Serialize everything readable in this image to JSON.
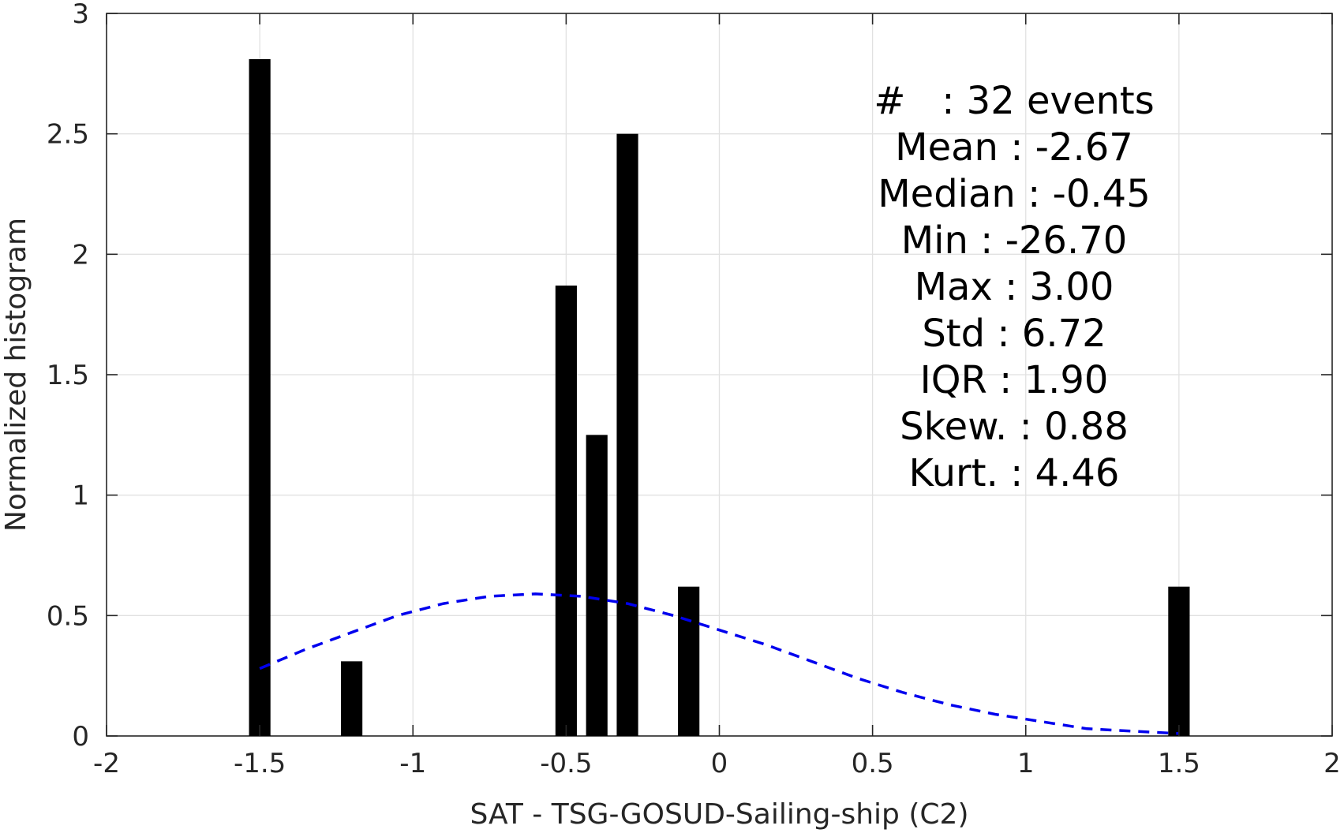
{
  "chart_data": {
    "type": "bar",
    "xlabel": "SAT - TSG-GOSUD-Sailing-ship (C2)",
    "ylabel": "Normalized histogram",
    "xlim": [
      -2,
      2
    ],
    "ylim": [
      0,
      3
    ],
    "xticks": [
      -2,
      -1.5,
      -1,
      -0.5,
      0,
      0.5,
      1,
      1.5,
      2
    ],
    "xtick_labels": [
      "-2",
      "-1.5",
      "-1",
      "-0.5",
      "0",
      "0.5",
      "1",
      "1.5",
      "2"
    ],
    "yticks": [
      0,
      0.5,
      1,
      1.5,
      2,
      2.5,
      3
    ],
    "ytick_labels": [
      "0",
      "0.5",
      "1",
      "1.5",
      "2",
      "2.5",
      "3"
    ],
    "grid": true,
    "bar_width": 0.07,
    "bar_color": "#000000",
    "bars": [
      {
        "x": -1.5,
        "value": 2.81
      },
      {
        "x": -1.2,
        "value": 0.31
      },
      {
        "x": -0.5,
        "value": 1.87
      },
      {
        "x": -0.4,
        "value": 1.25
      },
      {
        "x": -0.3,
        "value": 2.5
      },
      {
        "x": -0.1,
        "value": 0.62
      },
      {
        "x": 1.5,
        "value": 0.62
      }
    ],
    "fit_curve": {
      "style": "dashed",
      "color": "#0000ee",
      "x": [
        -1.5,
        -1.35,
        -1.2,
        -1.05,
        -0.9,
        -0.75,
        -0.6,
        -0.45,
        -0.3,
        -0.15,
        0,
        0.15,
        0.3,
        0.45,
        0.6,
        0.75,
        0.9,
        1.05,
        1.2,
        1.35,
        1.5
      ],
      "y": [
        0.28,
        0.36,
        0.43,
        0.5,
        0.55,
        0.58,
        0.59,
        0.58,
        0.55,
        0.5,
        0.44,
        0.38,
        0.31,
        0.24,
        0.18,
        0.13,
        0.09,
        0.06,
        0.03,
        0.02,
        0.01
      ]
    },
    "stats": [
      {
        "key": "#  ",
        "sep": " : ",
        "value": "32 events"
      },
      {
        "key": "Mean",
        "sep": " : ",
        "value": "-2.67"
      },
      {
        "key": "Median",
        "sep": " : ",
        "value": "-0.45"
      },
      {
        "key": "Min",
        "sep": " : ",
        "value": "-26.70"
      },
      {
        "key": "Max",
        "sep": " : ",
        "value": "3.00"
      },
      {
        "key": "Std",
        "sep": " : ",
        "value": "6.72"
      },
      {
        "key": "IQR",
        "sep": " : ",
        "value": "1.90"
      },
      {
        "key": "Skew.",
        "sep": " : ",
        "value": "0.88"
      },
      {
        "key": "Kurt.",
        "sep": " : ",
        "value": "4.46"
      }
    ]
  }
}
